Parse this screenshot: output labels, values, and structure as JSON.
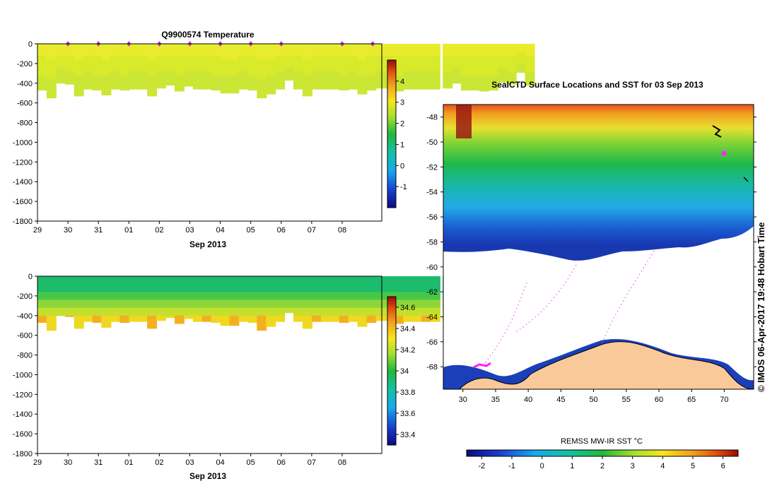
{
  "chart_data": [
    {
      "type": "heatmap",
      "title": "Q9900574  Temperature",
      "xlabel": "Sep 2013",
      "x_ticks": [
        "29",
        "30",
        "31",
        "01",
        "02",
        "03",
        "04",
        "05",
        "06",
        "07",
        "08"
      ],
      "ylim": [
        -1800,
        0
      ],
      "y_ticks": [
        0,
        -200,
        -400,
        -600,
        -800,
        -1000,
        -1200,
        -1400,
        -1600,
        -1800
      ],
      "colorbar": {
        "range": [
          -2,
          5
        ],
        "ticks": [
          -1,
          0,
          1,
          2,
          3,
          4
        ]
      },
      "profile_days": [
        29.0,
        29.3,
        29.6,
        29.9,
        30.2,
        30.5,
        30.8,
        31.1,
        31.4,
        31.7,
        32.0,
        32.3,
        32.6,
        32.9,
        33.2,
        33.5,
        33.8,
        34.1,
        34.4,
        34.7,
        35.0,
        35.3,
        35.6,
        35.9,
        36.2,
        36.5,
        36.8,
        37.1,
        37.4,
        37.7,
        38.0,
        38.3,
        38.6,
        38.9,
        39.2,
        39.5,
        39.8,
        40.1,
        40.4,
        40.7,
        41.0,
        41.3,
        41.6,
        41.9,
        42.0,
        42.3,
        42.6,
        42.9,
        43.2,
        43.5,
        43.8,
        44.1,
        44.4,
        44.7,
        45.0
      ],
      "profile_depths": [
        470,
        550,
        400,
        410,
        530,
        460,
        470,
        520,
        460,
        470,
        460,
        460,
        530,
        450,
        420,
        480,
        430,
        460,
        460,
        470,
        500,
        500,
        460,
        470,
        550,
        510,
        460,
        370,
        460,
        530,
        460,
        460,
        460,
        470,
        460,
        510,
        470,
        450,
        450,
        480,
        460,
        460,
        460,
        460,
        0,
        450,
        400,
        470,
        470,
        480,
        470,
        390,
        410,
        290,
        420
      ],
      "surface_markers": [
        30,
        31,
        32,
        33,
        34,
        35,
        36,
        37,
        39,
        40
      ],
      "values_description_unused": ""
    },
    {
      "type": "heatmap",
      "title": "",
      "xlabel": "Sep 2013",
      "x_ticks": [
        "29",
        "30",
        "31",
        "01",
        "02",
        "03",
        "04",
        "05",
        "06",
        "07",
        "08"
      ],
      "ylim": [
        -1800,
        0
      ],
      "y_ticks": [
        0,
        -200,
        -400,
        -600,
        -800,
        -1000,
        -1200,
        -1400,
        -1600,
        -1800
      ],
      "colorbar": {
        "range": [
          33.3,
          34.7
        ],
        "ticks": [
          33.4,
          33.6,
          33.8,
          34,
          34.2,
          34.4,
          34.6
        ]
      }
    },
    {
      "type": "heatmap",
      "title": "SealCTD Surface Locations and SST for 03 Sep 2013",
      "x_ticks": [
        "30",
        "35",
        "40",
        "45",
        "50",
        "55",
        "60",
        "65",
        "70"
      ],
      "y_ticks": [
        "-48",
        "-50",
        "-52",
        "-54",
        "-56",
        "-58",
        "-60",
        "-62",
        "-64",
        "-66",
        "-68"
      ],
      "xlim": [
        27,
        74.5
      ],
      "ylim": [
        -69.8,
        -47
      ],
      "colorbar": {
        "label": "REMSS MW-IR SST °C",
        "range": [
          -2.5,
          6.5
        ],
        "ticks": [
          "-2",
          "-1",
          "0",
          "1",
          "2",
          "3",
          "4",
          "5",
          "6"
        ]
      },
      "credit": "© IMOS 06-Apr-2017 19:48 Hobart Time"
    }
  ]
}
